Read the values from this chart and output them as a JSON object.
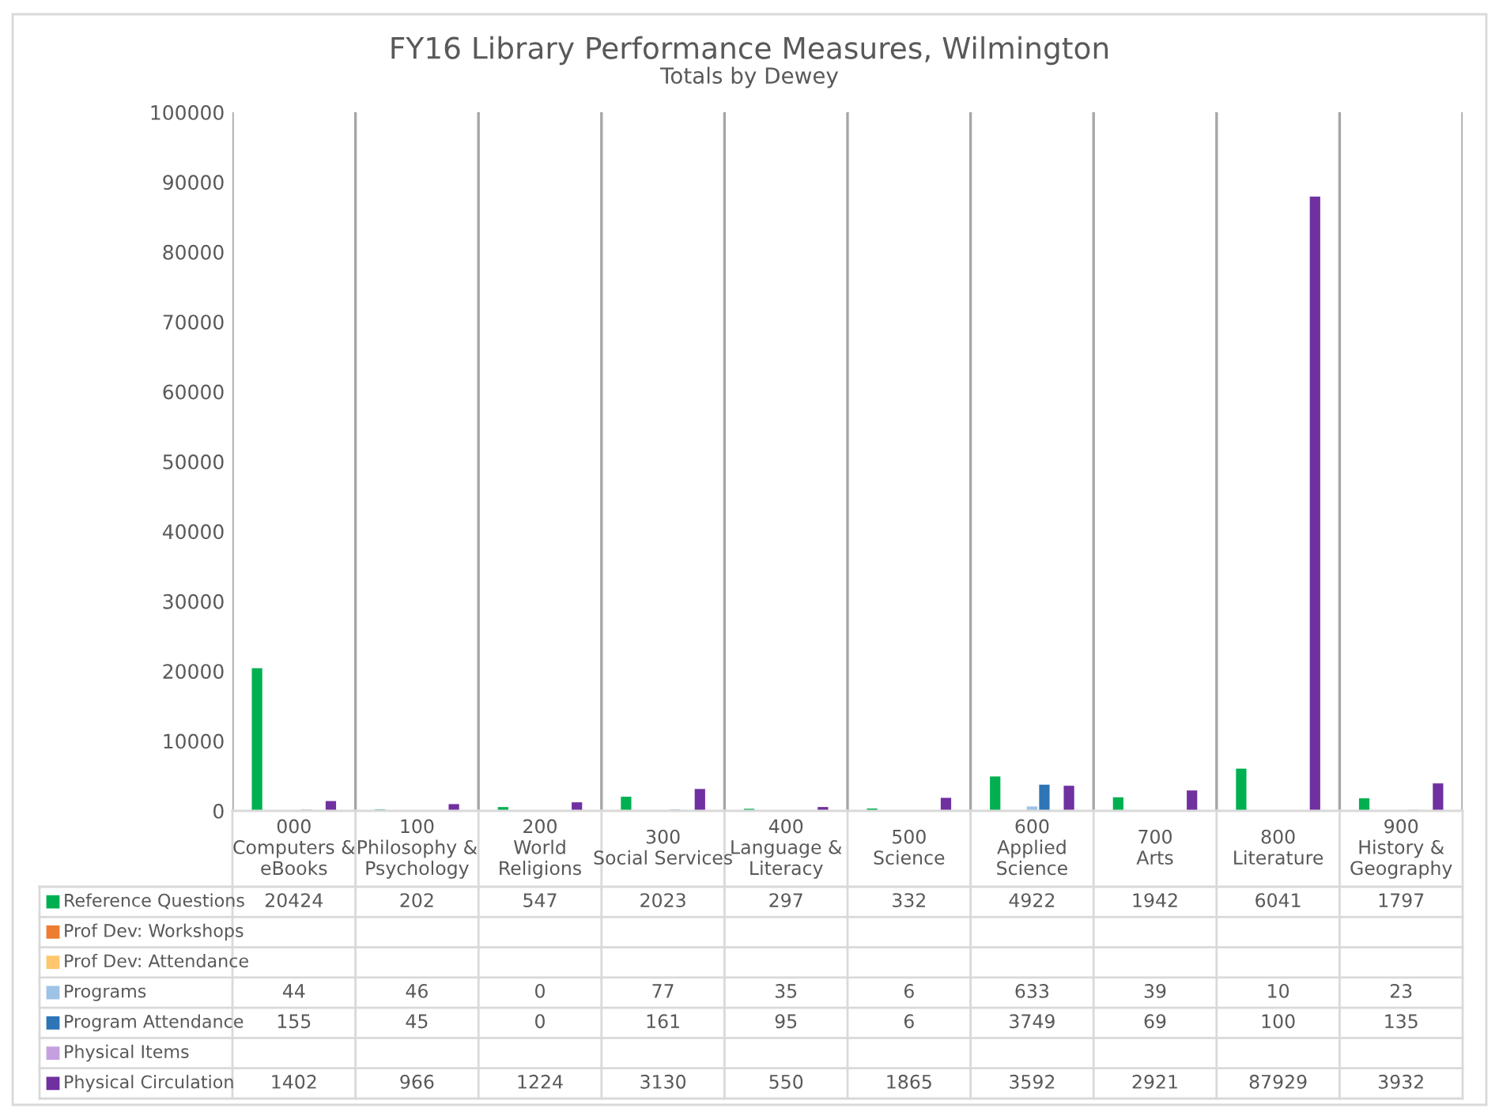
{
  "chart_data": {
    "type": "bar",
    "title": "FY16 Library Performance Measures, Wilmington",
    "subtitle": "Totals by Dewey",
    "categories": [
      "000\nComputers &\neBooks",
      "100\nPhilosophy &\nPsychology",
      "200\nWorld\nReligions",
      "300\nSocial Services",
      "400\nLanguage &\nLiteracy",
      "500\nScience",
      "600\nApplied\nScience",
      "700\nArts",
      "800\nLiterature",
      "900\nHistory &\nGeography"
    ],
    "series": [
      {
        "name": "Reference Questions",
        "color": "#00b050",
        "values": [
          20424,
          202,
          547,
          2023,
          297,
          332,
          4922,
          1942,
          6041,
          1797
        ]
      },
      {
        "name": "Prof Dev: Workshops",
        "color": "#ed7d31",
        "values": [
          null,
          null,
          null,
          null,
          null,
          null,
          null,
          null,
          null,
          null
        ]
      },
      {
        "name": "Prof Dev: Attendance",
        "color": "#ffc66d",
        "values": [
          null,
          null,
          null,
          null,
          null,
          null,
          null,
          null,
          null,
          null
        ]
      },
      {
        "name": "Programs",
        "color": "#9dc3e6",
        "values": [
          44,
          46,
          0,
          77,
          35,
          6,
          633,
          39,
          10,
          23
        ]
      },
      {
        "name": "Program Attendance",
        "color": "#2e75b6",
        "values": [
          155,
          45,
          0,
          161,
          95,
          6,
          3749,
          69,
          100,
          135
        ]
      },
      {
        "name": "Physical Items",
        "color": "#c5a0e0",
        "values": [
          null,
          null,
          null,
          null,
          null,
          null,
          null,
          null,
          null,
          null
        ]
      },
      {
        "name": "Physical Circulation",
        "color": "#7030a0",
        "values": [
          1402,
          966,
          1224,
          3130,
          550,
          1865,
          3592,
          2921,
          87929,
          3932
        ]
      }
    ],
    "ylim": [
      0,
      100000
    ],
    "yticks": [
      0,
      10000,
      20000,
      30000,
      40000,
      50000,
      60000,
      70000,
      80000,
      90000,
      100000
    ],
    "grid": "x",
    "legend": "bottom",
    "data_labels": true
  }
}
